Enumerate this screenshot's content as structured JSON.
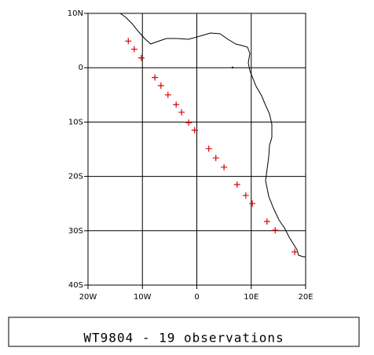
{
  "chart_data": {
    "type": "scatter",
    "caption": "WT9804 - 19 observations",
    "x": [
      -12.6,
      -11.5,
      -10.2,
      -7.7,
      -6.6,
      -5.3,
      -3.8,
      -2.8,
      -1.5,
      -0.4,
      2.2,
      3.5,
      5.0,
      7.4,
      9.0,
      10.2,
      12.9,
      14.4,
      18.0
    ],
    "values": [
      4.9,
      3.4,
      1.8,
      -1.8,
      -3.3,
      -5.0,
      -6.8,
      -8.2,
      -10.1,
      -11.5,
      -14.9,
      -16.6,
      -18.3,
      -21.5,
      -23.5,
      -25.0,
      -28.3,
      -29.9,
      -33.9
    ],
    "color": "#e00000",
    "xlim": [
      -20,
      20
    ],
    "ylim": [
      -40,
      10
    ],
    "xticks": [
      {
        "value": -20,
        "label": "20W"
      },
      {
        "value": -10,
        "label": "10W"
      },
      0,
      {
        "value": 10,
        "label": "10E"
      },
      {
        "value": 20,
        "label": "20E"
      }
    ],
    "yticks": [
      {
        "value": 10,
        "label": "10N"
      },
      0,
      {
        "value": -10,
        "label": "10S"
      },
      {
        "value": -20,
        "label": "20S"
      },
      {
        "value": -30,
        "label": "30S"
      },
      {
        "value": -40,
        "label": "40S"
      }
    ],
    "grid": true
  }
}
